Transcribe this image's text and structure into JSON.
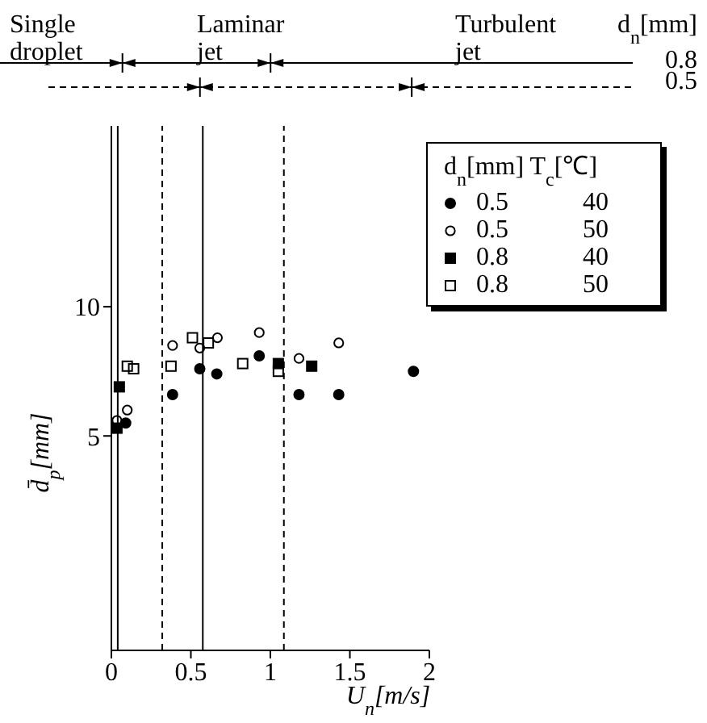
{
  "chart_data": {
    "type": "scatter",
    "xlabel": "U$_{n}$[m/s]",
    "ylabel": "d̄$_{p}$[mm]",
    "legend_title": "d$_{n}$[mm]   T$_{c}$[℃]",
    "xlim": [
      0,
      2
    ],
    "xticks": [
      0,
      0.5,
      1,
      1.5,
      2
    ],
    "ylim": [
      -3.3,
      17
    ],
    "yticks": [
      5,
      10
    ],
    "grid": false,
    "legend": "top right",
    "series": [
      {
        "name": "0.5 40",
        "color": "#000000",
        "marker": "circle",
        "x": [
          0.09,
          0.385,
          0.556,
          0.663,
          0.93,
          1.18,
          1.43,
          1.9
        ],
        "values": [
          5.5,
          6.6,
          7.6,
          7.4,
          8.1,
          6.6,
          6.6,
          7.5
        ]
      },
      {
        "name": "0.5 50",
        "color": "#000000",
        "marker": "circle-open",
        "x": [
          0.035,
          0.1,
          0.385,
          0.556,
          0.667,
          0.93,
          1.18,
          1.43
        ],
        "values": [
          5.6,
          6,
          8.5,
          8.4,
          8.8,
          9,
          8,
          8.6
        ]
      },
      {
        "name": "0.8 40",
        "color": "#000000",
        "marker": "square",
        "x": [
          0.035,
          0.05,
          1.05,
          1.26
        ],
        "values": [
          5.3,
          6.9,
          7.8,
          7.7
        ]
      },
      {
        "name": "0.8 50",
        "color": "#000000",
        "marker": "square-open",
        "x": [
          0.1,
          0.14,
          0.375,
          0.51,
          0.61,
          0.826,
          1.05
        ],
        "values": [
          7.7,
          7.6,
          7.7,
          8.8,
          8.6,
          7.8,
          7.5
        ]
      }
    ],
    "ref_lines": [
      {
        "axis": "x",
        "value": 0.04,
        "line_style": "solid"
      },
      {
        "axis": "x",
        "value": 0.32,
        "line_style": "dashed"
      },
      {
        "axis": "x",
        "value": 0.575,
        "line_style": "solid"
      },
      {
        "axis": "x",
        "value": 1.085,
        "line_style": "dashed"
      }
    ],
    "annotations": [
      "Single\ndroplet",
      "Laminar\njet",
      "Turbulent\njet",
      "d$_{n}$[mm]",
      "0.8",
      "0.5"
    ]
  }
}
